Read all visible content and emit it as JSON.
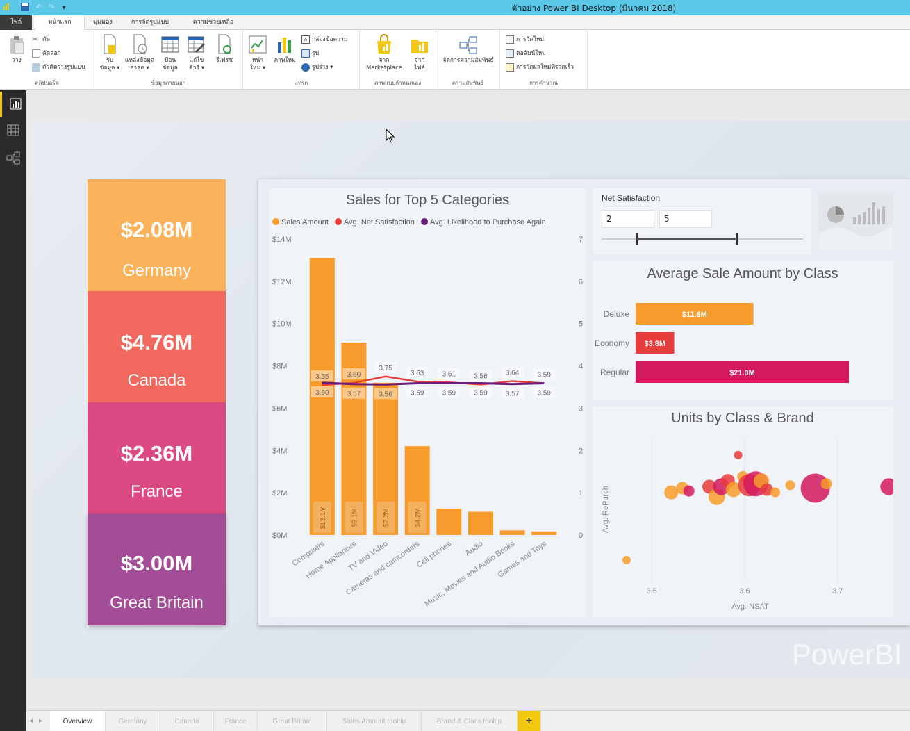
{
  "window": {
    "title": "ตัวอย่าง Power BI Desktop (มีนาคม 2018)"
  },
  "ribbon_tabs": [
    {
      "label": "ไฟล์"
    },
    {
      "label": "หน้าแรก"
    },
    {
      "label": "มุมมอง"
    },
    {
      "label": "การจัดรูปแบบ"
    },
    {
      "label": "ความช่วยเหลือ"
    }
  ],
  "ribbon": {
    "clipboard": {
      "paste": "วาง",
      "cut": "ตัด",
      "copy": "คัดลอก",
      "format_painter": "ตัวคัดวางรูปแบบ",
      "group": "คลิปบอร์ด"
    },
    "external": {
      "get_data": [
        "รับ",
        "ข้อมูล ▾"
      ],
      "recent": [
        "แหล่งข้อมูล",
        "ล่าสุด ▾"
      ],
      "enter": [
        "ป้อน",
        "ข้อมูล"
      ],
      "edit": [
        "แก้ไข",
        "คิวรี ▾"
      ],
      "refresh": "รีเฟรช",
      "group": "ข้อมูลภายนอก"
    },
    "insert": {
      "new_page": [
        "หน้า",
        "ใหม่ ▾"
      ],
      "new_visual": "ภาพใหม่",
      "textbox": "กล่องข้อความ",
      "image": "รูป",
      "shapes": "รูปร่าง ▾",
      "group": "แทรก"
    },
    "custom": {
      "marketplace": [
        "จาก",
        "Marketplace"
      ],
      "file": [
        "จาก",
        "ไฟล์"
      ],
      "group": "ภาพแบบกำหนดเอง"
    },
    "relationships": {
      "manage": "จัดการความสัมพันธ์",
      "group": "ความสัมพันธ์"
    },
    "calc": {
      "new_measure": "การวัดใหม่",
      "new_column": "คอลัมน์ใหม่",
      "quick_measure": "การวัดผลใหม่ที่รวดเร็ว",
      "group": "การคำนวณ"
    }
  },
  "kpis": [
    {
      "value": "$2.08M",
      "label": "Germany",
      "color": "#f9b15a"
    },
    {
      "value": "$4.76M",
      "label": "Canada",
      "color": "#f0685e"
    },
    {
      "value": "$2.36M",
      "label": "France",
      "color": "#dc4a84"
    },
    {
      "value": "$3.00M",
      "label": "Great Britain",
      "color": "#a24d96"
    }
  ],
  "combo": {
    "title": "Sales for Top 5 Categories",
    "legend": [
      {
        "name": "Sales Amount",
        "color": "#f79c2c"
      },
      {
        "name": "Avg. Net Satisfaction",
        "color": "#e83b3b"
      },
      {
        "name": "Avg. Likelihood to Purchase Again",
        "color": "#6a1d7a"
      }
    ]
  },
  "chart_data": [
    {
      "type": "bar",
      "title": "Sales for Top 5 Categories",
      "categories": [
        "Computers",
        "Home Appliances",
        "TV and Video",
        "Cameras and camcorders",
        "Cell phones",
        "Audio",
        "Music, Movies and Audio Books",
        "Games and Toys"
      ],
      "series": [
        {
          "name": "Sales Amount",
          "values": [
            13.1,
            9.1,
            7.2,
            4.2,
            1.25,
            1.1,
            0.22,
            0.17
          ],
          "bar_labels": [
            "$13.1M",
            "$9.1M",
            "$7.2M",
            "$4.2M",
            "",
            "",
            "",
            ""
          ]
        },
        {
          "name": "Avg. Net Satisfaction",
          "values": [
            3.55,
            3.6,
            3.75,
            3.63,
            3.61,
            3.56,
            3.64,
            3.59
          ]
        },
        {
          "name": "Avg. Likelihood to Purchase Again",
          "values": [
            3.6,
            3.57,
            3.56,
            3.59,
            3.59,
            3.59,
            3.57,
            3.59
          ]
        }
      ],
      "y_ticks": [
        "$14M",
        "$12M",
        "$10M",
        "$8M",
        "$6M",
        "$4M",
        "$2M",
        "$0M"
      ],
      "y2_ticks": [
        "7",
        "6",
        "5",
        "4",
        "3",
        "2",
        "1",
        "0"
      ],
      "ylim": [
        0,
        14
      ],
      "y2lim": [
        0,
        7
      ]
    },
    {
      "type": "bar",
      "title": "Average Sale Amount by Class",
      "categories": [
        "Deluxe",
        "Economy",
        "Regular"
      ],
      "values": [
        11.6,
        3.8,
        21.0
      ],
      "labels": [
        "$11.6M",
        "$3.8M",
        "$21.0M"
      ],
      "colors": [
        "#f79c2c",
        "#e83b3b",
        "#d4195e"
      ]
    },
    {
      "type": "scatter",
      "title": "Units by Class & Brand",
      "xlabel": "Avg. NSAT",
      "ylabel": "Avg. RePurch",
      "x_ticks": [
        "3.5",
        "3.6",
        "3.7"
      ],
      "xlim": [
        3.47,
        3.76
      ],
      "points": [
        {
          "x": 3.473,
          "y": 0.15,
          "r": 6,
          "color": "#f79c2c"
        },
        {
          "x": 3.521,
          "y": 0.62,
          "r": 10,
          "color": "#f79c2c"
        },
        {
          "x": 3.533,
          "y": 0.65,
          "r": 9,
          "color": "#f79c2c"
        },
        {
          "x": 3.54,
          "y": 0.63,
          "r": 8,
          "color": "#d4195e"
        },
        {
          "x": 3.562,
          "y": 0.66,
          "r": 10,
          "color": "#e83b3b"
        },
        {
          "x": 3.57,
          "y": 0.59,
          "r": 12,
          "color": "#f79c2c"
        },
        {
          "x": 3.575,
          "y": 0.66,
          "r": 12,
          "color": "#d4195e"
        },
        {
          "x": 3.582,
          "y": 0.7,
          "r": 10,
          "color": "#e83b3b"
        },
        {
          "x": 3.588,
          "y": 0.64,
          "r": 11,
          "color": "#f79c2c"
        },
        {
          "x": 3.598,
          "y": 0.73,
          "r": 8,
          "color": "#f79c2c"
        },
        {
          "x": 3.605,
          "y": 0.67,
          "r": 16,
          "color": "#e83b3b"
        },
        {
          "x": 3.612,
          "y": 0.68,
          "r": 18,
          "color": "#d4195e"
        },
        {
          "x": 3.618,
          "y": 0.7,
          "r": 11,
          "color": "#f79c2c"
        },
        {
          "x": 3.624,
          "y": 0.64,
          "r": 9,
          "color": "#e83b3b"
        },
        {
          "x": 3.633,
          "y": 0.62,
          "r": 7,
          "color": "#f79c2c"
        },
        {
          "x": 3.593,
          "y": 0.88,
          "r": 6,
          "color": "#e83b3b"
        },
        {
          "x": 3.649,
          "y": 0.67,
          "r": 7,
          "color": "#f79c2c"
        },
        {
          "x": 3.676,
          "y": 0.65,
          "r": 21,
          "color": "#d4195e"
        },
        {
          "x": 3.688,
          "y": 0.68,
          "r": 8,
          "color": "#f79c2c"
        },
        {
          "x": 3.755,
          "y": 0.66,
          "r": 12,
          "color": "#d4195e"
        }
      ],
      "ylim": [
        0,
        1
      ]
    }
  ],
  "slicer": {
    "title": "Net Satisfaction",
    "min": "2",
    "max": "5"
  },
  "page_tabs": [
    "Overview",
    "Germany",
    "Canada",
    "France",
    "Great Britain",
    "Sales Amount tooltip",
    "Brand & Class tooltip"
  ],
  "add_tab": "+",
  "watermark": "PowerBI"
}
